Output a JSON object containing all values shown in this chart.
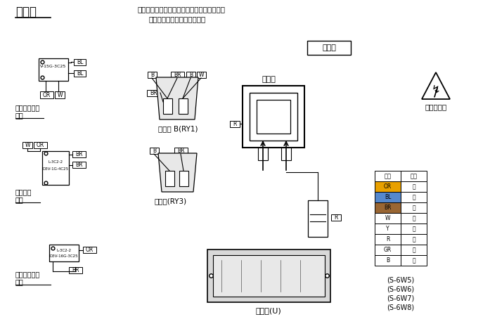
{
  "title": "接線圖",
  "note_line1": "注：置換元件時，請按圖所示檢查導線顏色。",
  "note_line2": "括號內所指為接插件的顏色。",
  "brand_label": "新高止",
  "warning_label": "注意：高壓",
  "top_switch_label1": "初級碰鎖開關",
  "top_switch_label2": "頂部",
  "mid_switch_label1": "短路開關",
  "mid_switch_label2": "中部",
  "bot_switch_label1": "次級碰鎖開關",
  "bot_switch_label2": "底部",
  "relay_b_label": "繼電器 B(RY1)",
  "relay_3_label": "繼電器(RY3)",
  "magnetron_label": "磁控管",
  "inverter_label": "變頻器(U)",
  "table_headers": [
    "符號",
    "顏色"
  ],
  "table_rows": [
    [
      "OR",
      "橙"
    ],
    [
      "BL",
      "藍"
    ],
    [
      "BR",
      "棕"
    ],
    [
      "W",
      "白"
    ],
    [
      "Y",
      "黃"
    ],
    [
      "R",
      "紅"
    ],
    [
      "GR",
      "灰"
    ],
    [
      "B",
      "黑"
    ]
  ],
  "model_notes": [
    "(S-6W5)",
    "(S-6W6)",
    "(S-6W7)",
    "(S-6W8)"
  ],
  "bg_color": "#ffffff",
  "highlight_colors": [
    "#e8a000",
    "#5588cc",
    "#996633"
  ]
}
